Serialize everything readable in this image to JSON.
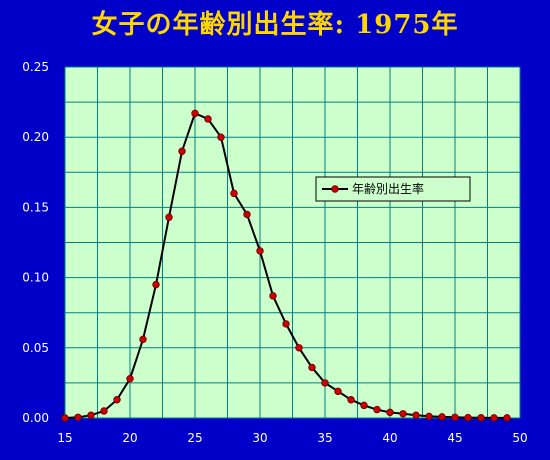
{
  "chart_data": {
    "type": "line",
    "title": "女子の年齢別出生率: 1975年",
    "xlabel": "",
    "ylabel": "",
    "xlim": [
      15,
      50
    ],
    "ylim": [
      0,
      0.25
    ],
    "x_ticks": [
      15,
      20,
      25,
      30,
      35,
      40,
      45,
      50
    ],
    "y_ticks": [
      0.0,
      0.05,
      0.1,
      0.15,
      0.2,
      0.25
    ],
    "y_tick_labels": [
      "0.00",
      "0.05",
      "0.10",
      "0.15",
      "0.20",
      "0.25"
    ],
    "grid": true,
    "legend_position": "right",
    "series": [
      {
        "name": "年齢別出生率",
        "color": "#cc0000",
        "line_color": "#000000",
        "x": [
          15,
          16,
          17,
          18,
          19,
          20,
          21,
          22,
          23,
          24,
          25,
          26,
          27,
          28,
          29,
          30,
          31,
          32,
          33,
          34,
          35,
          36,
          37,
          38,
          39,
          40,
          41,
          42,
          43,
          44,
          45,
          46,
          47,
          48,
          49
        ],
        "values": [
          0.0,
          0.0005,
          0.002,
          0.005,
          0.013,
          0.028,
          0.056,
          0.095,
          0.143,
          0.19,
          0.217,
          0.213,
          0.2,
          0.16,
          0.145,
          0.119,
          0.087,
          0.067,
          0.05,
          0.036,
          0.025,
          0.019,
          0.013,
          0.009,
          0.006,
          0.004,
          0.003,
          0.002,
          0.0012,
          0.0008,
          0.0005,
          0.0003,
          0.0002,
          0.0001,
          0.0001
        ]
      }
    ]
  },
  "colors": {
    "background": "#0000c8",
    "plot_area": "#ccffcc",
    "grid": "#008080",
    "title": "#ffd700"
  }
}
